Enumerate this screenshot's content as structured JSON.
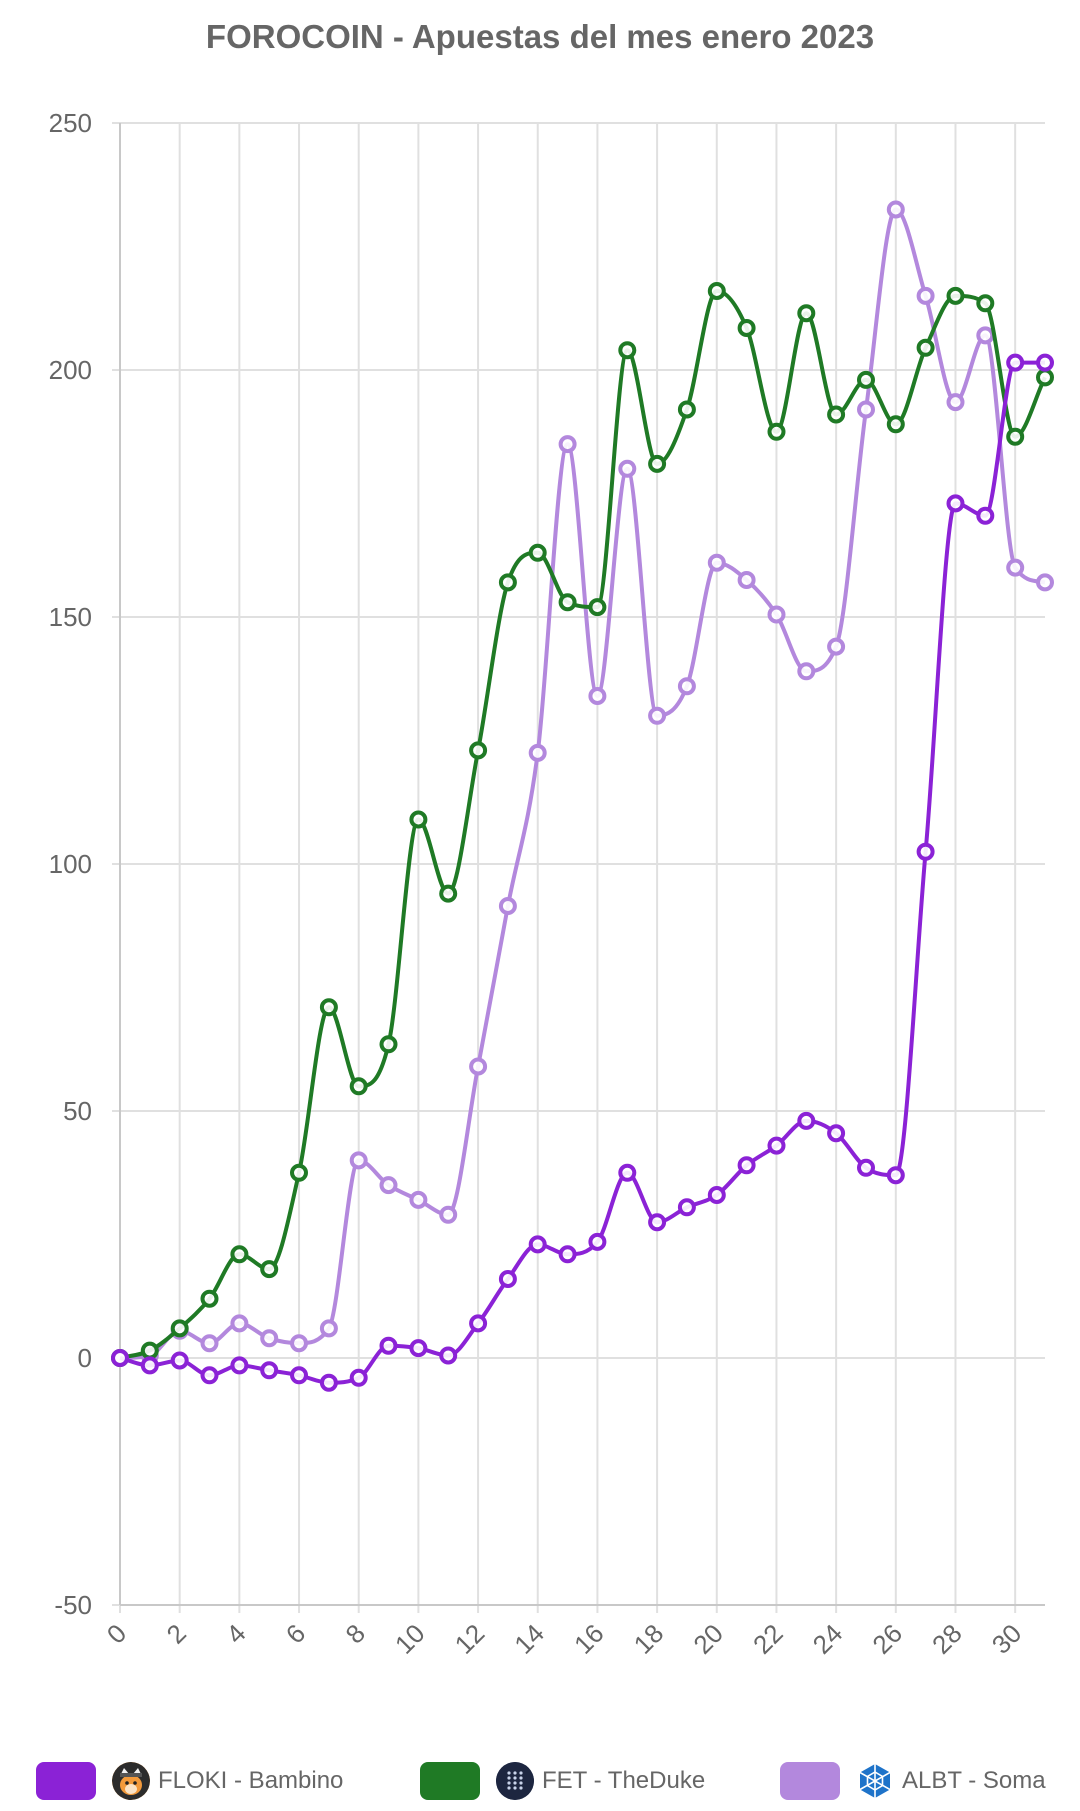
{
  "chart_data": {
    "type": "line",
    "title": "FOROCOIN - Apuestas del mes enero 2023",
    "xlabel": "",
    "ylabel": "",
    "x": [
      0,
      1,
      2,
      3,
      4,
      5,
      6,
      7,
      8,
      9,
      10,
      11,
      12,
      13,
      14,
      15,
      16,
      17,
      18,
      19,
      20,
      21,
      22,
      23,
      24,
      25,
      26,
      27,
      28,
      29,
      30,
      31
    ],
    "x_tick_labels": [
      "0",
      "2",
      "4",
      "6",
      "8",
      "10",
      "12",
      "14",
      "16",
      "18",
      "20",
      "22",
      "24",
      "26",
      "28",
      "30"
    ],
    "xlim": [
      0,
      31
    ],
    "ylim": [
      -50,
      250
    ],
    "y_ticks": [
      "250",
      "200",
      "150",
      "100",
      "50",
      "0",
      "-50"
    ],
    "grid": true,
    "legend_position": "bottom",
    "series": [
      {
        "name": "FLOKI - Bambino",
        "color": "#8b22d6",
        "icon": "floki-dog-icon",
        "values": [
          0,
          -1.5,
          -0.5,
          -3.5,
          -1.5,
          -2.5,
          -3.5,
          -5,
          -4,
          2.5,
          2,
          0.5,
          7,
          16,
          23,
          21,
          23.5,
          37.5,
          27.5,
          30.5,
          33,
          39,
          43,
          48,
          45.5,
          38.5,
          37,
          102.5,
          173,
          170.5,
          201.5,
          201.5
        ]
      },
      {
        "name": "FET - TheDuke",
        "color": "#1f7a25",
        "icon": "fetch-grid-icon",
        "values": [
          0,
          1.5,
          6,
          12,
          21,
          18,
          37.5,
          71,
          55,
          63.5,
          109,
          94,
          123,
          157,
          163,
          153,
          152,
          204,
          181,
          192,
          216,
          208.5,
          187.5,
          211.5,
          191,
          198,
          189,
          204.5,
          215,
          213.5,
          186.5,
          198.5
        ]
      },
      {
        "name": "ALBT - Soma",
        "color": "#b388dd",
        "icon": "allianceblock-icon",
        "values": [
          0,
          0.5,
          5.5,
          3,
          7,
          4,
          3,
          6,
          40,
          35,
          32,
          29,
          59,
          91.5,
          122.5,
          185,
          134,
          180,
          130,
          136,
          161,
          157.5,
          150.5,
          139,
          144,
          192,
          232.5,
          215,
          193.5,
          207,
          160,
          157
        ]
      }
    ]
  }
}
